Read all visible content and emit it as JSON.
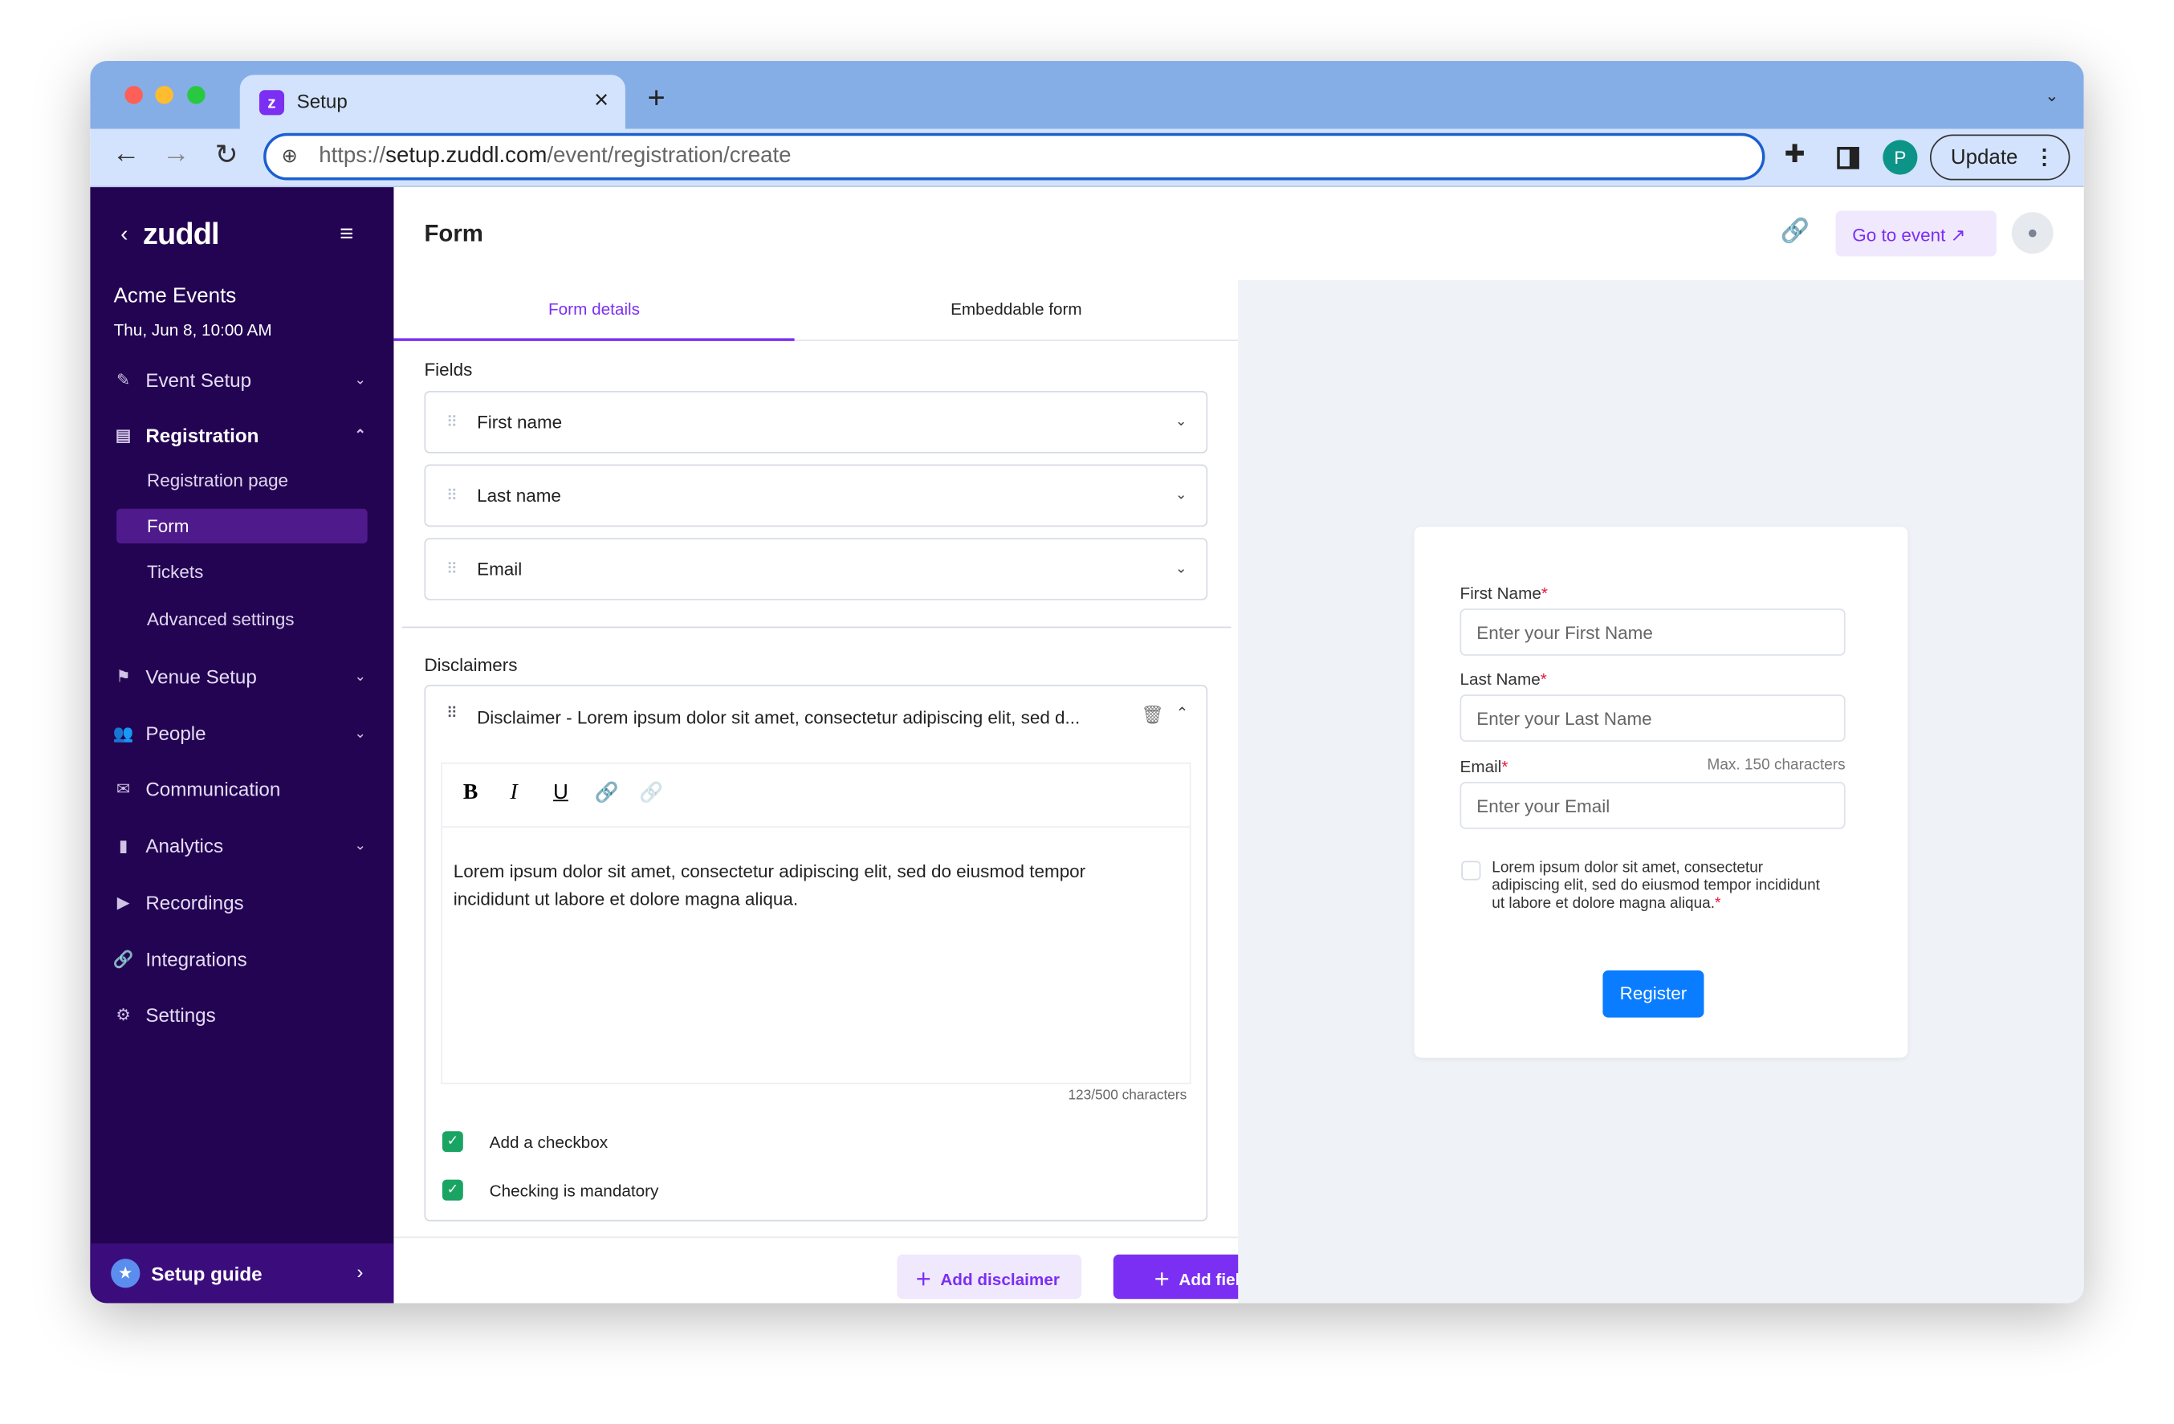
{
  "browser": {
    "tab_title": "Setup",
    "url_scheme": "https://",
    "url_host": "setup.zuddl.com",
    "url_path": "/event/registration/create",
    "profile_initial": "P",
    "update_label": "Update"
  },
  "sidebar": {
    "logo": "zuddl",
    "event_name": "Acme Events",
    "event_date": "Thu, Jun 8, 10:00 AM",
    "items": [
      {
        "label": "Event Setup",
        "icon": "wand-icon"
      },
      {
        "label": "Registration",
        "icon": "form-icon"
      },
      {
        "label": "Venue Setup",
        "icon": "signpost-icon"
      },
      {
        "label": "People",
        "icon": "people-icon"
      },
      {
        "label": "Communication",
        "icon": "mail-icon"
      },
      {
        "label": "Analytics",
        "icon": "bar-chart-icon"
      },
      {
        "label": "Recordings",
        "icon": "play-icon"
      },
      {
        "label": "Integrations",
        "icon": "link-icon"
      },
      {
        "label": "Settings",
        "icon": "gear-icon"
      }
    ],
    "sub_items": [
      "Registration page",
      "Form",
      "Tickets",
      "Advanced settings"
    ],
    "setup_guide": "Setup guide"
  },
  "header": {
    "title": "Form",
    "go_to_event": "Go to event"
  },
  "tabs": [
    "Form details",
    "Embeddable form"
  ],
  "fields_section": {
    "title": "Fields",
    "fields": [
      "First name",
      "Last name",
      "Email"
    ]
  },
  "disclaimers": {
    "title": "Disclaimers",
    "item_title": "Disclaimer - Lorem ipsum dolor sit amet, consectetur adipiscing elit, sed d...",
    "body": "Lorem ipsum dolor sit amet, consectetur adipiscing elit, sed do eiusmod tempor incididunt ut labore et dolore magna aliqua.",
    "char_count": "123/500 characters",
    "add_checkbox": "Add a checkbox",
    "mandatory": "Checking is mandatory"
  },
  "actions": {
    "add_disclaimer": "Add disclaimer",
    "add_field": "Add field"
  },
  "preview": {
    "first_label": "First Name",
    "first_ph": "Enter your First Name",
    "last_label": "Last Name",
    "last_ph": "Enter your Last Name",
    "email_label": "Email",
    "email_hint": "Max. 150 characters",
    "email_ph": "Enter your Email",
    "disclaimer": "Lorem ipsum dolor sit amet, consectetur adipiscing elit, sed do eiusmod tempor incididunt ut labore et dolore magna aliqua.",
    "required_mark": "*",
    "register": "Register"
  },
  "colors": {
    "sidebar": "#230452",
    "accent": "#7b2ff2",
    "register": "#0a7cff",
    "check": "#19a463"
  }
}
